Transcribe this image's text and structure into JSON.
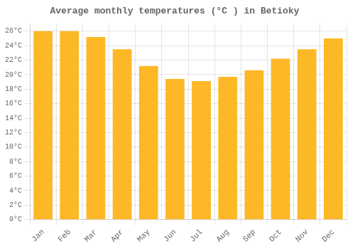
{
  "chart_data": {
    "type": "bar",
    "title": "Average monthly temperatures (°C ) in Betioky",
    "categories": [
      "Jan",
      "Feb",
      "Mar",
      "Apr",
      "May",
      "Jun",
      "Jul",
      "Aug",
      "Sep",
      "Oct",
      "Nov",
      "Dec"
    ],
    "values": [
      26.0,
      26.0,
      25.2,
      23.5,
      21.2,
      19.4,
      19.1,
      19.7,
      20.6,
      22.2,
      23.5,
      25.0
    ],
    "color": "#FDB827",
    "ylim": [
      0,
      27
    ],
    "yticks": [
      {
        "value": 0,
        "label": "0°C"
      },
      {
        "value": 2,
        "label": "2°C"
      },
      {
        "value": 4,
        "label": "4°C"
      },
      {
        "value": 6,
        "label": "6°C"
      },
      {
        "value": 8,
        "label": "8°C"
      },
      {
        "value": 10,
        "label": "10°C"
      },
      {
        "value": 12,
        "label": "12°C"
      },
      {
        "value": 14,
        "label": "14°C"
      },
      {
        "value": 16,
        "label": "16°C"
      },
      {
        "value": 18,
        "label": "18°C"
      },
      {
        "value": 20,
        "label": "20°C"
      },
      {
        "value": 22,
        "label": "22°C"
      },
      {
        "value": 24,
        "label": "24°C"
      },
      {
        "value": 26,
        "label": "26°C"
      }
    ],
    "grid": true
  }
}
